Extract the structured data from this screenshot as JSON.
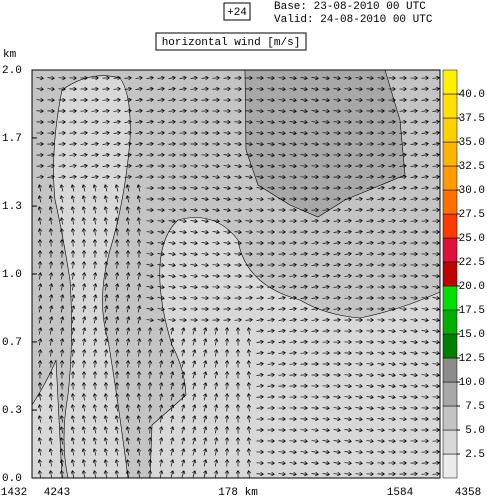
{
  "chart_data": {
    "type": "cross-section",
    "lead": "+24",
    "base": "Base: 23-08-2010  00 UTC",
    "valid": "Valid: 24-08-2010  00 UTC",
    "title": "horizontal wind [m/s]",
    "ylabel": "km",
    "ylim": [
      0,
      2
    ],
    "yticks": [
      {
        "value": 0,
        "label": "0.0"
      },
      {
        "value": 0.333,
        "label": "0.3"
      },
      {
        "value": 0.667,
        "label": "0.7"
      },
      {
        "value": 1,
        "label": "1.0"
      },
      {
        "value": 1.333,
        "label": "1.3"
      },
      {
        "value": 1.667,
        "label": "1.7"
      },
      {
        "value": 2,
        "label": "2.0"
      }
    ],
    "x_labels": [
      "1432",
      "4243",
      "178 km",
      "1584",
      "4358"
    ],
    "colorbar": {
      "clim": [
        0,
        42.5
      ],
      "colors": [
        "#ececec",
        "#d8d8d8",
        "#c4c4c4",
        "#a8a8a8",
        "#8c8c8c",
        "#007f00",
        "#00b000",
        "#00e000",
        "#c00000",
        "#e0103a",
        "#ff3a00",
        "#ff7000",
        "#ff9a00",
        "#ffb400",
        "#ffd000",
        "#ffe000",
        "#fff000"
      ],
      "ticks": [
        2.5,
        {
          "value": 5,
          "label": "5.0"
        },
        7.5,
        {
          "value": 10,
          "label": "10.0"
        },
        12.5,
        {
          "value": 15,
          "label": "15.0"
        },
        17.5,
        {
          "value": 20,
          "label": "20.0"
        },
        22.5,
        {
          "value": 25,
          "label": "25.0"
        },
        27.5,
        {
          "value": 30,
          "label": "30.0"
        },
        32.5,
        {
          "value": 35,
          "label": "35.0"
        },
        37.5,
        {
          "value": 40,
          "label": "40.0"
        }
      ]
    }
  }
}
